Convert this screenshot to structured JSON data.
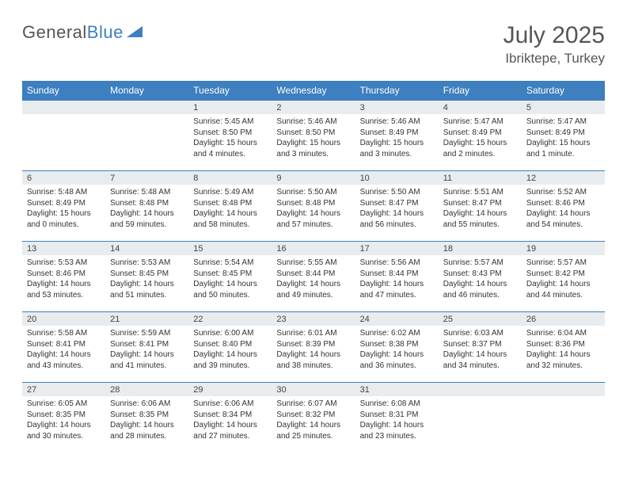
{
  "brand": {
    "name1": "General",
    "name2": "Blue"
  },
  "title": {
    "month": "July 2025",
    "location": "Ibriktepe, Turkey"
  },
  "colors": {
    "header_blue": "#3d7fbf",
    "daynum_bg": "#e8ecef",
    "text_gray": "#555555",
    "body_text": "#333333"
  },
  "daynames": [
    "Sunday",
    "Monday",
    "Tuesday",
    "Wednesday",
    "Thursday",
    "Friday",
    "Saturday"
  ],
  "weeks": [
    {
      "nums": [
        "",
        "",
        "1",
        "2",
        "3",
        "4",
        "5"
      ],
      "cells": [
        "",
        "",
        "Sunrise: 5:45 AM\nSunset: 8:50 PM\nDaylight: 15 hours and 4 minutes.",
        "Sunrise: 5:46 AM\nSunset: 8:50 PM\nDaylight: 15 hours and 3 minutes.",
        "Sunrise: 5:46 AM\nSunset: 8:49 PM\nDaylight: 15 hours and 3 minutes.",
        "Sunrise: 5:47 AM\nSunset: 8:49 PM\nDaylight: 15 hours and 2 minutes.",
        "Sunrise: 5:47 AM\nSunset: 8:49 PM\nDaylight: 15 hours and 1 minute."
      ]
    },
    {
      "nums": [
        "6",
        "7",
        "8",
        "9",
        "10",
        "11",
        "12"
      ],
      "cells": [
        "Sunrise: 5:48 AM\nSunset: 8:49 PM\nDaylight: 15 hours and 0 minutes.",
        "Sunrise: 5:48 AM\nSunset: 8:48 PM\nDaylight: 14 hours and 59 minutes.",
        "Sunrise: 5:49 AM\nSunset: 8:48 PM\nDaylight: 14 hours and 58 minutes.",
        "Sunrise: 5:50 AM\nSunset: 8:48 PM\nDaylight: 14 hours and 57 minutes.",
        "Sunrise: 5:50 AM\nSunset: 8:47 PM\nDaylight: 14 hours and 56 minutes.",
        "Sunrise: 5:51 AM\nSunset: 8:47 PM\nDaylight: 14 hours and 55 minutes.",
        "Sunrise: 5:52 AM\nSunset: 8:46 PM\nDaylight: 14 hours and 54 minutes."
      ]
    },
    {
      "nums": [
        "13",
        "14",
        "15",
        "16",
        "17",
        "18",
        "19"
      ],
      "cells": [
        "Sunrise: 5:53 AM\nSunset: 8:46 PM\nDaylight: 14 hours and 53 minutes.",
        "Sunrise: 5:53 AM\nSunset: 8:45 PM\nDaylight: 14 hours and 51 minutes.",
        "Sunrise: 5:54 AM\nSunset: 8:45 PM\nDaylight: 14 hours and 50 minutes.",
        "Sunrise: 5:55 AM\nSunset: 8:44 PM\nDaylight: 14 hours and 49 minutes.",
        "Sunrise: 5:56 AM\nSunset: 8:44 PM\nDaylight: 14 hours and 47 minutes.",
        "Sunrise: 5:57 AM\nSunset: 8:43 PM\nDaylight: 14 hours and 46 minutes.",
        "Sunrise: 5:57 AM\nSunset: 8:42 PM\nDaylight: 14 hours and 44 minutes."
      ]
    },
    {
      "nums": [
        "20",
        "21",
        "22",
        "23",
        "24",
        "25",
        "26"
      ],
      "cells": [
        "Sunrise: 5:58 AM\nSunset: 8:41 PM\nDaylight: 14 hours and 43 minutes.",
        "Sunrise: 5:59 AM\nSunset: 8:41 PM\nDaylight: 14 hours and 41 minutes.",
        "Sunrise: 6:00 AM\nSunset: 8:40 PM\nDaylight: 14 hours and 39 minutes.",
        "Sunrise: 6:01 AM\nSunset: 8:39 PM\nDaylight: 14 hours and 38 minutes.",
        "Sunrise: 6:02 AM\nSunset: 8:38 PM\nDaylight: 14 hours and 36 minutes.",
        "Sunrise: 6:03 AM\nSunset: 8:37 PM\nDaylight: 14 hours and 34 minutes.",
        "Sunrise: 6:04 AM\nSunset: 8:36 PM\nDaylight: 14 hours and 32 minutes."
      ]
    },
    {
      "nums": [
        "27",
        "28",
        "29",
        "30",
        "31",
        "",
        ""
      ],
      "cells": [
        "Sunrise: 6:05 AM\nSunset: 8:35 PM\nDaylight: 14 hours and 30 minutes.",
        "Sunrise: 6:06 AM\nSunset: 8:35 PM\nDaylight: 14 hours and 28 minutes.",
        "Sunrise: 6:06 AM\nSunset: 8:34 PM\nDaylight: 14 hours and 27 minutes.",
        "Sunrise: 6:07 AM\nSunset: 8:32 PM\nDaylight: 14 hours and 25 minutes.",
        "Sunrise: 6:08 AM\nSunset: 8:31 PM\nDaylight: 14 hours and 23 minutes.",
        "",
        ""
      ]
    }
  ]
}
